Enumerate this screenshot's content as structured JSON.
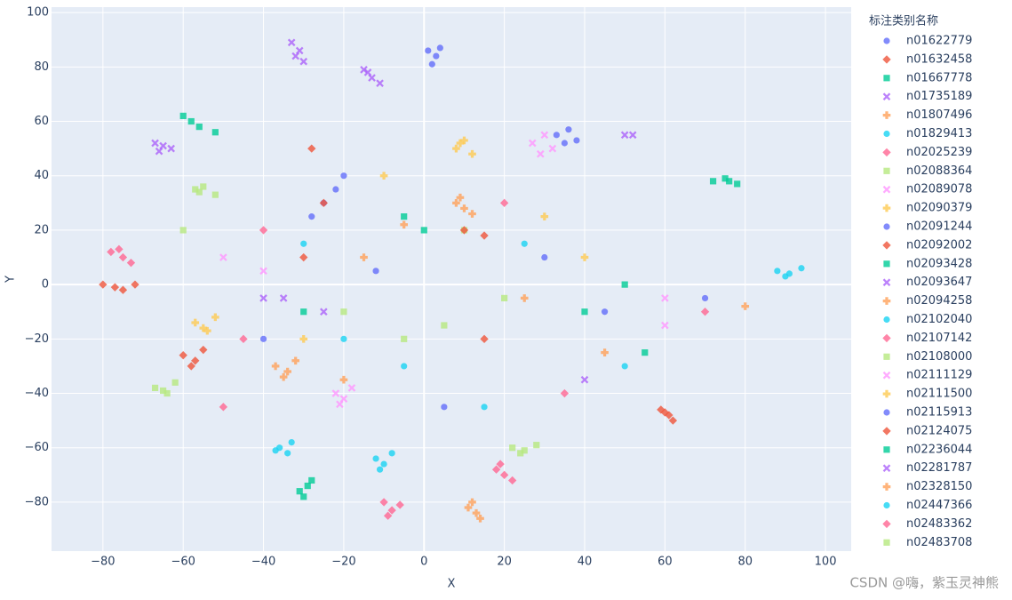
{
  "chart_data": {
    "type": "scatter",
    "x_label": "X",
    "y_label": "Y",
    "legend_title": "标注类别名称",
    "legend_position": "right",
    "watermark": "CSDN @嗨，紫玉灵神熊",
    "grid": true,
    "xlim": [
      -92.8,
      106.4
    ],
    "ylim": [
      -98,
      102
    ],
    "xticks": [
      {
        "value": -80,
        "label": "−80"
      },
      {
        "value": -60,
        "label": "−60"
      },
      {
        "value": -40,
        "label": "−40"
      },
      {
        "value": -20,
        "label": "−20"
      },
      0,
      20,
      40,
      60,
      80,
      100
    ],
    "yticks": [
      {
        "value": -80,
        "label": "−80"
      },
      {
        "value": -60,
        "label": "−60"
      },
      {
        "value": -40,
        "label": "−40"
      },
      {
        "value": -20,
        "label": "−20"
      },
      0,
      20,
      40,
      60,
      80,
      100
    ],
    "series": [
      {
        "name": "n01622779",
        "color": "#636efa",
        "symbol": "circle",
        "x": [
          1,
          3,
          2,
          4,
          30,
          -12
        ],
        "values": [
          86,
          84,
          81,
          87,
          10,
          5
        ]
      },
      {
        "name": "n01632458",
        "color": "#EF553B",
        "symbol": "diamond",
        "x": [
          -80,
          -77,
          -72,
          -75,
          -28,
          15
        ],
        "values": [
          0,
          -1,
          0,
          -2,
          50,
          -20
        ]
      },
      {
        "name": "n01667778",
        "color": "#00cc96",
        "symbol": "square",
        "x": [
          -60,
          -56,
          -52,
          -58,
          40,
          -5
        ],
        "values": [
          62,
          58,
          56,
          60,
          -10,
          25
        ]
      },
      {
        "name": "n01735189",
        "color": "#ab63fa",
        "symbol": "x",
        "x": [
          -33,
          -31,
          -30,
          -32,
          52,
          -40
        ],
        "values": [
          89,
          86,
          82,
          84,
          55,
          -5
        ]
      },
      {
        "name": "n01807496",
        "color": "#FFA15A",
        "symbol": "cross",
        "x": [
          11,
          13,
          12,
          14,
          -15,
          45
        ],
        "values": [
          -82,
          -84,
          -80,
          -86,
          10,
          -25
        ]
      },
      {
        "name": "n01829413",
        "color": "#19d3f3",
        "symbol": "circle",
        "x": [
          -36,
          -34,
          -33,
          -37,
          25,
          -5
        ],
        "values": [
          -60,
          -62,
          -58,
          -61,
          15,
          -30
        ]
      },
      {
        "name": "n02025239",
        "color": "#FF6692",
        "symbol": "diamond",
        "x": [
          -78,
          -75,
          -73,
          -76,
          -45,
          20
        ],
        "values": [
          12,
          10,
          8,
          13,
          -20,
          30
        ]
      },
      {
        "name": "n02088364",
        "color": "#B6E880",
        "symbol": "square",
        "x": [
          -67,
          -64,
          -62,
          -65,
          10,
          -20
        ],
        "values": [
          -38,
          -40,
          -36,
          -39,
          20,
          -10
        ]
      },
      {
        "name": "n02089078",
        "color": "#FF97FF",
        "symbol": "x",
        "x": [
          27,
          30,
          32,
          29,
          -40,
          60
        ],
        "values": [
          52,
          55,
          50,
          48,
          5,
          -15
        ]
      },
      {
        "name": "n02090379",
        "color": "#FECB52",
        "symbol": "cross",
        "x": [
          -57,
          -54,
          -52,
          -55,
          30,
          -10
        ],
        "values": [
          -14,
          -17,
          -12,
          -16,
          25,
          40
        ]
      },
      {
        "name": "n02091244",
        "color": "#636efa",
        "symbol": "circle",
        "x": [
          -25,
          -22,
          -28,
          -20,
          45,
          5
        ],
        "values": [
          30,
          35,
          25,
          40,
          -10,
          -45
        ]
      },
      {
        "name": "n02092002",
        "color": "#EF553B",
        "symbol": "diamond",
        "x": [
          -60,
          -57,
          -55,
          -58,
          15,
          -30
        ],
        "values": [
          -26,
          -28,
          -24,
          -30,
          18,
          10
        ]
      },
      {
        "name": "n02093428",
        "color": "#00cc96",
        "symbol": "square",
        "x": [
          -31,
          -29,
          -28,
          -30,
          50,
          0
        ],
        "values": [
          -76,
          -74,
          -72,
          -78,
          0,
          20
        ]
      },
      {
        "name": "n02093647",
        "color": "#ab63fa",
        "symbol": "x",
        "x": [
          -15,
          -13,
          -11,
          -14,
          50,
          -35
        ],
        "values": [
          79,
          76,
          74,
          78,
          55,
          -5
        ]
      },
      {
        "name": "n02094258",
        "color": "#FFA15A",
        "symbol": "cross",
        "x": [
          -37,
          -34,
          -32,
          -35,
          -5,
          25
        ],
        "values": [
          -30,
          -32,
          -28,
          -34,
          22,
          -5
        ]
      },
      {
        "name": "n02102040",
        "color": "#19d3f3",
        "symbol": "circle",
        "x": [
          88,
          91,
          94,
          90,
          -20,
          15
        ],
        "values": [
          5,
          4,
          6,
          3,
          -20,
          -45
        ]
      },
      {
        "name": "n02107142",
        "color": "#FF6692",
        "symbol": "diamond",
        "x": [
          -10,
          -8,
          -6,
          -9,
          -50,
          35
        ],
        "values": [
          -80,
          -83,
          -81,
          -85,
          -45,
          -40
        ]
      },
      {
        "name": "n02108000",
        "color": "#B6E880",
        "symbol": "square",
        "x": [
          -57,
          -55,
          -52,
          -56,
          20,
          -5
        ],
        "values": [
          35,
          36,
          33,
          34,
          -5,
          -20
        ]
      },
      {
        "name": "n02111129",
        "color": "#FF97FF",
        "symbol": "x",
        "x": [
          -22,
          -20,
          -18,
          -21,
          60,
          -50
        ],
        "values": [
          -40,
          -42,
          -38,
          -44,
          -5,
          10
        ]
      },
      {
        "name": "n02111500",
        "color": "#FECB52",
        "symbol": "cross",
        "x": [
          8,
          10,
          12,
          9,
          -30,
          40
        ],
        "values": [
          50,
          53,
          48,
          52,
          -20,
          10
        ]
      },
      {
        "name": "n02115913",
        "color": "#636efa",
        "symbol": "circle",
        "x": [
          33,
          36,
          38,
          35,
          -40,
          70
        ],
        "values": [
          55,
          57,
          53,
          52,
          -20,
          -5
        ]
      },
      {
        "name": "n02124075",
        "color": "#EF553B",
        "symbol": "diamond",
        "x": [
          59,
          61,
          62,
          60,
          -25,
          10
        ],
        "values": [
          -46,
          -48,
          -50,
          -47,
          30,
          20
        ]
      },
      {
        "name": "n02236044",
        "color": "#00cc96",
        "symbol": "square",
        "x": [
          72,
          75,
          78,
          76,
          -30,
          55
        ],
        "values": [
          38,
          39,
          37,
          38,
          -10,
          -25
        ]
      },
      {
        "name": "n02281787",
        "color": "#ab63fa",
        "symbol": "x",
        "x": [
          -67,
          -65,
          -63,
          -66,
          -25,
          40
        ],
        "values": [
          52,
          51,
          50,
          49,
          -10,
          -35
        ]
      },
      {
        "name": "n02328150",
        "color": "#FFA15A",
        "symbol": "cross",
        "x": [
          8,
          10,
          12,
          9,
          -20,
          80
        ],
        "values": [
          30,
          28,
          26,
          32,
          -35,
          -8
        ]
      },
      {
        "name": "n02447366",
        "color": "#19d3f3",
        "symbol": "circle",
        "x": [
          -12,
          -10,
          -8,
          -11,
          50,
          -30
        ],
        "values": [
          -64,
          -66,
          -62,
          -68,
          -30,
          15
        ]
      },
      {
        "name": "n02483362",
        "color": "#FF6692",
        "symbol": "diamond",
        "x": [
          18,
          20,
          22,
          19,
          -40,
          70
        ],
        "values": [
          -68,
          -70,
          -72,
          -66,
          20,
          -10
        ]
      },
      {
        "name": "n02483708",
        "color": "#B6E880",
        "symbol": "square",
        "x": [
          22,
          25,
          28,
          24,
          -60,
          5
        ],
        "values": [
          -60,
          -61,
          -59,
          -62,
          20,
          -15
        ]
      }
    ]
  }
}
